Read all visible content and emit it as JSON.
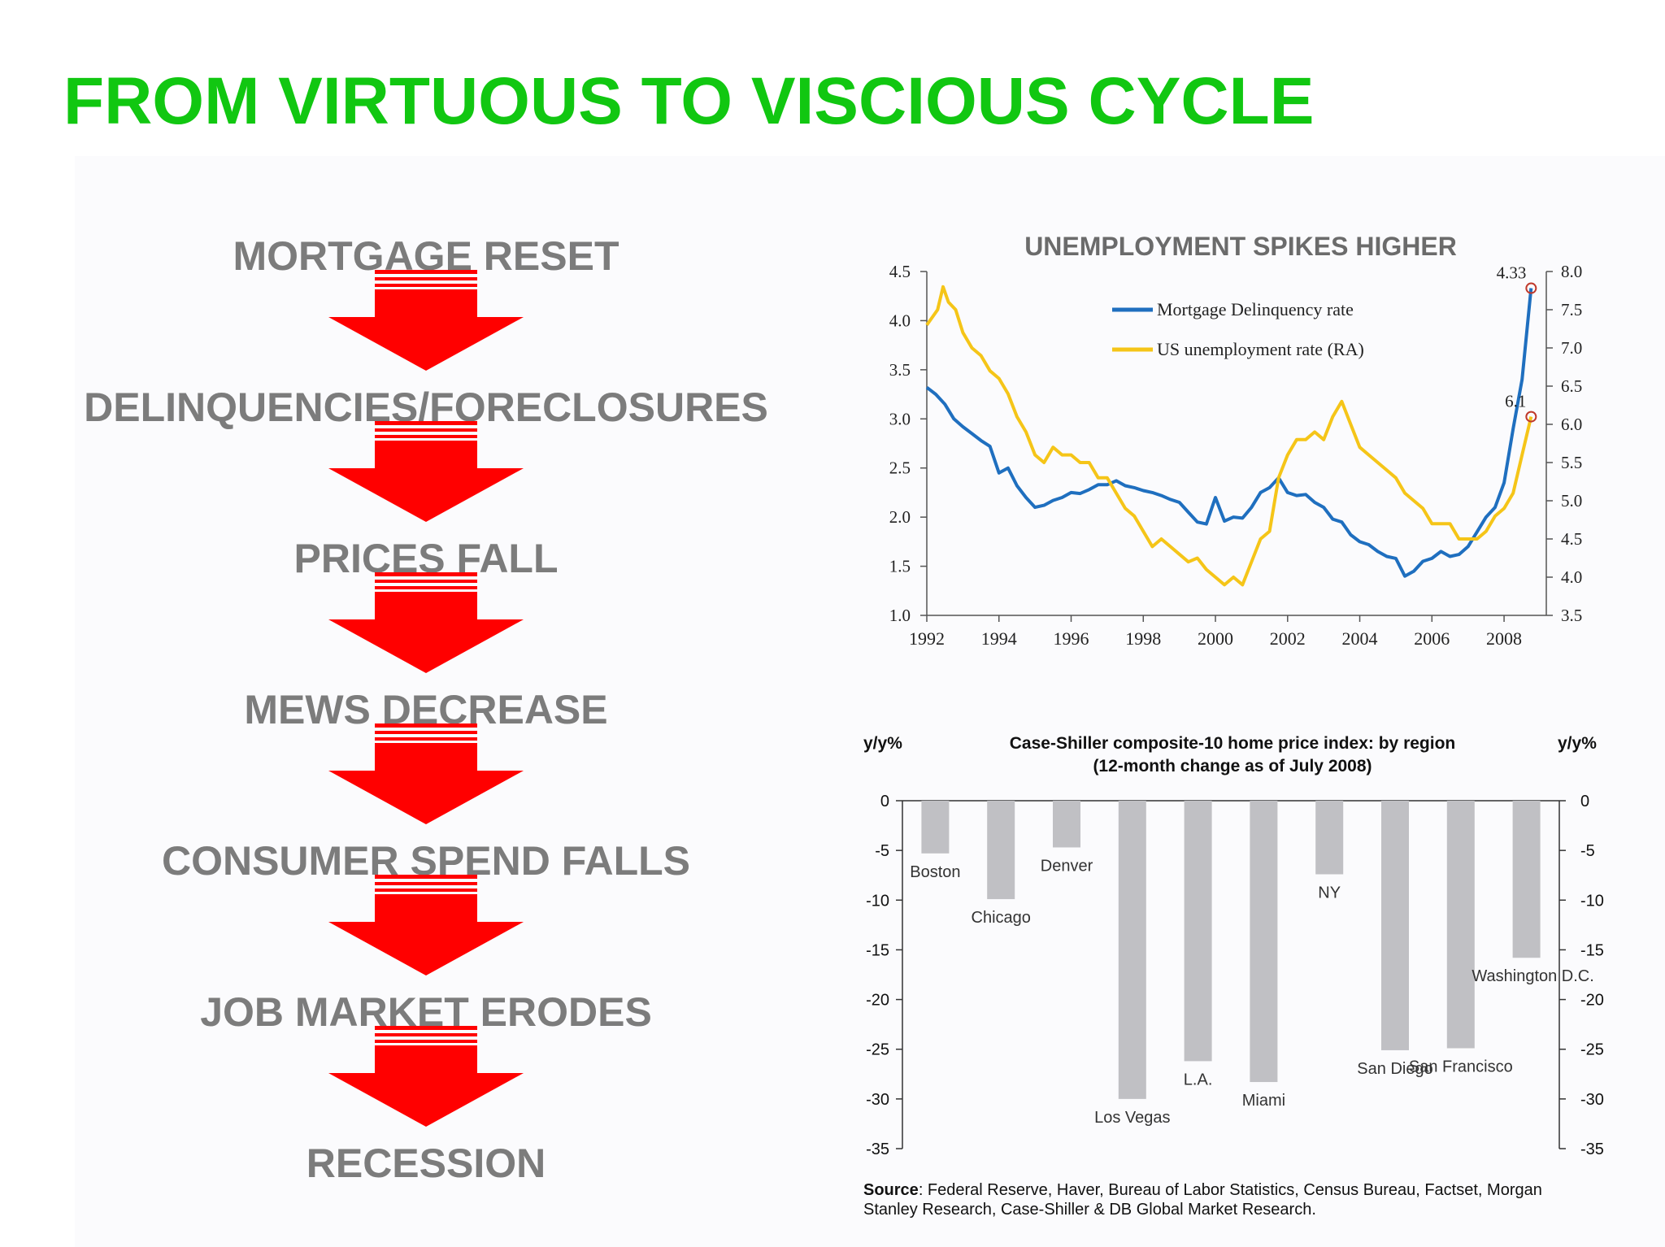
{
  "title": "FROM VIRTUOUS TO VISCIOUS CYCLE",
  "flow": {
    "steps": [
      "MORTGAGE RESET",
      "DELINQUENCIES/FORECLOSURES",
      "PRICES FALL",
      "MEWS DECREASE",
      "CONSUMER SPEND FALLS",
      "JOB MARKET ERODES",
      "RECESSION"
    ],
    "arrow_color": "#ff0000"
  },
  "source": {
    "label": "Source",
    "text": ": Federal Reserve, Haver, Bureau of Labor Statistics, Census Bureau, Factset, Morgan Stanley Research, Case-Shiller & DB Global Market Research."
  },
  "chart_data": [
    {
      "type": "line",
      "title": "UNEMPLOYMENT SPIKES HIGHER",
      "xlim": [
        1992,
        2008.9
      ],
      "x_ticks": [
        "1992",
        "1994",
        "1996",
        "1998",
        "2000",
        "2002",
        "2004",
        "2006",
        "2008"
      ],
      "ylim_left": [
        1.0,
        4.5
      ],
      "y_ticks_left": [
        "1.0",
        "1.5",
        "2.0",
        "2.5",
        "3.0",
        "3.5",
        "4.0",
        "4.5"
      ],
      "ylim_right": [
        3.5,
        8.0
      ],
      "y_ticks_right": [
        "3.5",
        "4.0",
        "4.5",
        "5.0",
        "5.5",
        "6.0",
        "6.5",
        "7.0",
        "7.5",
        "8.0"
      ],
      "legend_position": "top-center",
      "series": [
        {
          "name": "Mortgage Delinquency rate",
          "axis": "left",
          "color": "#1f6fbf",
          "points": [
            [
              1992.0,
              3.32
            ],
            [
              1992.25,
              3.25
            ],
            [
              1992.5,
              3.15
            ],
            [
              1992.75,
              3.0
            ],
            [
              1993.0,
              2.92
            ],
            [
              1993.25,
              2.85
            ],
            [
              1993.5,
              2.78
            ],
            [
              1993.75,
              2.72
            ],
            [
              1994.0,
              2.45
            ],
            [
              1994.25,
              2.5
            ],
            [
              1994.5,
              2.32
            ],
            [
              1994.75,
              2.2
            ],
            [
              1995.0,
              2.1
            ],
            [
              1995.25,
              2.12
            ],
            [
              1995.5,
              2.17
            ],
            [
              1995.75,
              2.2
            ],
            [
              1996.0,
              2.25
            ],
            [
              1996.25,
              2.24
            ],
            [
              1996.5,
              2.28
            ],
            [
              1996.75,
              2.33
            ],
            [
              1997.0,
              2.33
            ],
            [
              1997.25,
              2.37
            ],
            [
              1997.5,
              2.32
            ],
            [
              1997.75,
              2.3
            ],
            [
              1998.0,
              2.27
            ],
            [
              1998.25,
              2.25
            ],
            [
              1998.5,
              2.22
            ],
            [
              1998.75,
              2.18
            ],
            [
              1999.0,
              2.15
            ],
            [
              1999.25,
              2.05
            ],
            [
              1999.5,
              1.95
            ],
            [
              1999.75,
              1.93
            ],
            [
              2000.0,
              2.2
            ],
            [
              2000.25,
              1.96
            ],
            [
              2000.5,
              2.0
            ],
            [
              2000.75,
              1.99
            ],
            [
              2001.0,
              2.1
            ],
            [
              2001.25,
              2.25
            ],
            [
              2001.5,
              2.3
            ],
            [
              2001.75,
              2.4
            ],
            [
              2002.0,
              2.25
            ],
            [
              2002.25,
              2.22
            ],
            [
              2002.5,
              2.23
            ],
            [
              2002.75,
              2.15
            ],
            [
              2003.0,
              2.1
            ],
            [
              2003.25,
              1.98
            ],
            [
              2003.5,
              1.95
            ],
            [
              2003.75,
              1.82
            ],
            [
              2004.0,
              1.75
            ],
            [
              2004.25,
              1.72
            ],
            [
              2004.5,
              1.65
            ],
            [
              2004.75,
              1.6
            ],
            [
              2005.0,
              1.58
            ],
            [
              2005.25,
              1.4
            ],
            [
              2005.5,
              1.45
            ],
            [
              2005.75,
              1.55
            ],
            [
              2006.0,
              1.58
            ],
            [
              2006.25,
              1.65
            ],
            [
              2006.5,
              1.6
            ],
            [
              2006.75,
              1.62
            ],
            [
              2007.0,
              1.7
            ],
            [
              2007.25,
              1.85
            ],
            [
              2007.5,
              2.0
            ],
            [
              2007.75,
              2.1
            ],
            [
              2008.0,
              2.35
            ],
            [
              2008.25,
              2.9
            ],
            [
              2008.5,
              3.4
            ],
            [
              2008.75,
              4.33
            ]
          ],
          "end_label": "4.33"
        },
        {
          "name": "US unemployment rate (RA)",
          "axis": "right",
          "color": "#f5c518",
          "points": [
            [
              1992.0,
              7.3
            ],
            [
              1992.15,
              7.4
            ],
            [
              1992.3,
              7.5
            ],
            [
              1992.45,
              7.8
            ],
            [
              1992.6,
              7.6
            ],
            [
              1992.8,
              7.5
            ],
            [
              1993.0,
              7.2
            ],
            [
              1993.25,
              7.0
            ],
            [
              1993.5,
              6.9
            ],
            [
              1993.75,
              6.7
            ],
            [
              1994.0,
              6.6
            ],
            [
              1994.25,
              6.4
            ],
            [
              1994.5,
              6.1
            ],
            [
              1994.75,
              5.9
            ],
            [
              1995.0,
              5.6
            ],
            [
              1995.25,
              5.5
            ],
            [
              1995.5,
              5.7
            ],
            [
              1995.75,
              5.6
            ],
            [
              1996.0,
              5.6
            ],
            [
              1996.25,
              5.5
            ],
            [
              1996.5,
              5.5
            ],
            [
              1996.75,
              5.3
            ],
            [
              1997.0,
              5.3
            ],
            [
              1997.25,
              5.1
            ],
            [
              1997.5,
              4.9
            ],
            [
              1997.75,
              4.8
            ],
            [
              1998.0,
              4.6
            ],
            [
              1998.25,
              4.4
            ],
            [
              1998.5,
              4.5
            ],
            [
              1998.75,
              4.4
            ],
            [
              1999.0,
              4.3
            ],
            [
              1999.25,
              4.2
            ],
            [
              1999.5,
              4.25
            ],
            [
              1999.75,
              4.1
            ],
            [
              2000.0,
              4.0
            ],
            [
              2000.25,
              3.9
            ],
            [
              2000.5,
              4.0
            ],
            [
              2000.75,
              3.9
            ],
            [
              2001.0,
              4.2
            ],
            [
              2001.25,
              4.5
            ],
            [
              2001.5,
              4.6
            ],
            [
              2001.75,
              5.3
            ],
            [
              2002.0,
              5.6
            ],
            [
              2002.25,
              5.8
            ],
            [
              2002.5,
              5.8
            ],
            [
              2002.75,
              5.9
            ],
            [
              2003.0,
              5.8
            ],
            [
              2003.25,
              6.1
            ],
            [
              2003.5,
              6.3
            ],
            [
              2003.75,
              6.0
            ],
            [
              2004.0,
              5.7
            ],
            [
              2004.25,
              5.6
            ],
            [
              2004.5,
              5.5
            ],
            [
              2004.75,
              5.4
            ],
            [
              2005.0,
              5.3
            ],
            [
              2005.25,
              5.1
            ],
            [
              2005.5,
              5.0
            ],
            [
              2005.75,
              4.9
            ],
            [
              2006.0,
              4.7
            ],
            [
              2006.25,
              4.7
            ],
            [
              2006.5,
              4.7
            ],
            [
              2006.75,
              4.5
            ],
            [
              2007.0,
              4.5
            ],
            [
              2007.25,
              4.5
            ],
            [
              2007.5,
              4.6
            ],
            [
              2007.75,
              4.8
            ],
            [
              2008.0,
              4.9
            ],
            [
              2008.25,
              5.1
            ],
            [
              2008.5,
              5.6
            ],
            [
              2008.75,
              6.1
            ]
          ],
          "end_label": "6.1"
        }
      ]
    },
    {
      "type": "bar",
      "title": "Case-Shiller composite-10 home price index: by region",
      "subtitle": "(12-month change as of July 2008)",
      "ylabel_left": "y/y%",
      "ylabel_right": "y/y%",
      "ylim": [
        -35,
        0
      ],
      "y_ticks": [
        "0",
        "-5",
        "-10",
        "-15",
        "-20",
        "-25",
        "-30",
        "-35"
      ],
      "bar_color": "#c0c0c4",
      "categories": [
        "Boston",
        "Chicago",
        "Denver",
        "Los Vegas",
        "L.A.",
        "Miami",
        "NY",
        "San Diego",
        "San Francisco",
        "Washington D.C."
      ],
      "values": [
        -5.3,
        -9.9,
        -4.7,
        -30.0,
        -26.2,
        -28.3,
        -7.4,
        -25.1,
        -24.9,
        -15.8
      ]
    }
  ]
}
